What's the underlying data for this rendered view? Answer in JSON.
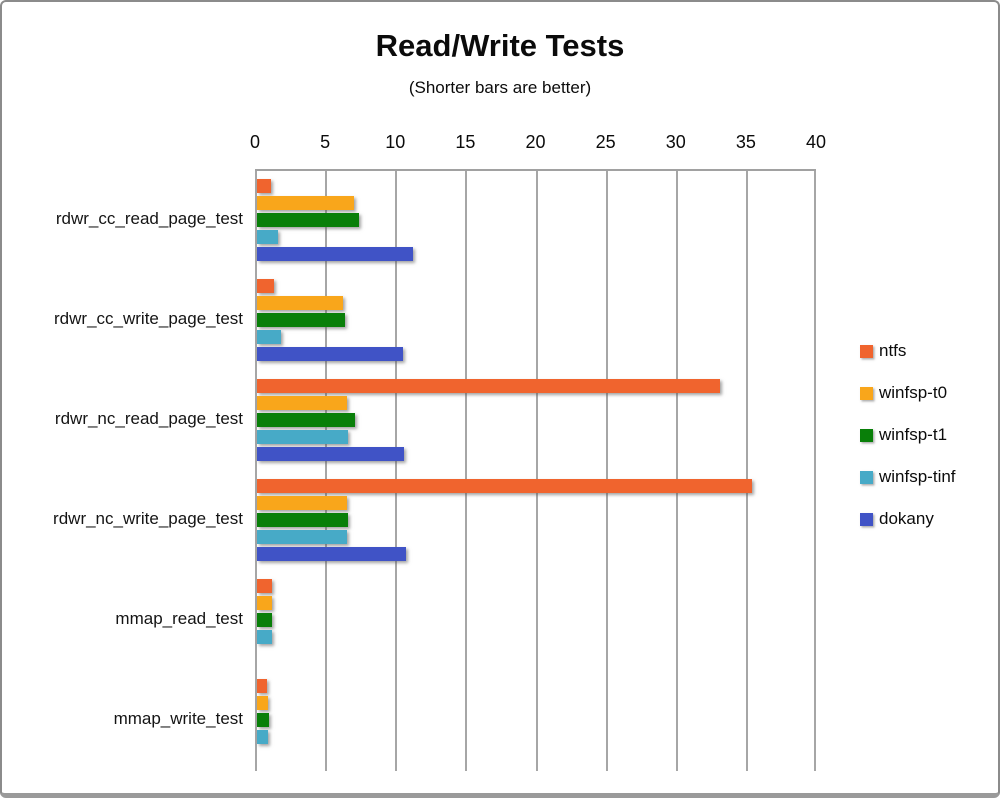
{
  "chart_data": {
    "type": "bar",
    "orientation": "horizontal",
    "title": "Read/Write Tests",
    "subtitle": "(Shorter bars are better)",
    "axis": {
      "position": "top",
      "min": 0,
      "max": 40,
      "tick_step": 5,
      "ticks": [
        0,
        5,
        10,
        15,
        20,
        25,
        30,
        35,
        40
      ]
    },
    "grid": "vertical",
    "gridline_color": "#a6a6a6",
    "legend_position": "right",
    "categories": [
      "rdwr_cc_read_page_test",
      "rdwr_cc_write_page_test",
      "rdwr_nc_read_page_test",
      "rdwr_nc_write_page_test",
      "mmap_read_test",
      "mmap_write_test"
    ],
    "series": [
      {
        "name": "ntfs",
        "color": "#F0642E",
        "values": [
          1.0,
          1.2,
          33.0,
          35.3,
          1.1,
          0.7
        ]
      },
      {
        "name": "winfsp-t0",
        "color": "#F9A61B",
        "values": [
          6.9,
          6.1,
          6.4,
          6.4,
          1.1,
          0.8
        ]
      },
      {
        "name": "winfsp-t1",
        "color": "#097F09",
        "values": [
          7.3,
          6.3,
          7.0,
          6.5,
          1.1,
          0.85
        ]
      },
      {
        "name": "winfsp-tinf",
        "color": "#47AAC7",
        "values": [
          1.5,
          1.7,
          6.5,
          6.4,
          1.1,
          0.8
        ]
      },
      {
        "name": "dokany",
        "color": "#4053C6",
        "values": [
          11.1,
          10.4,
          10.5,
          10.6,
          null,
          null
        ]
      }
    ]
  }
}
